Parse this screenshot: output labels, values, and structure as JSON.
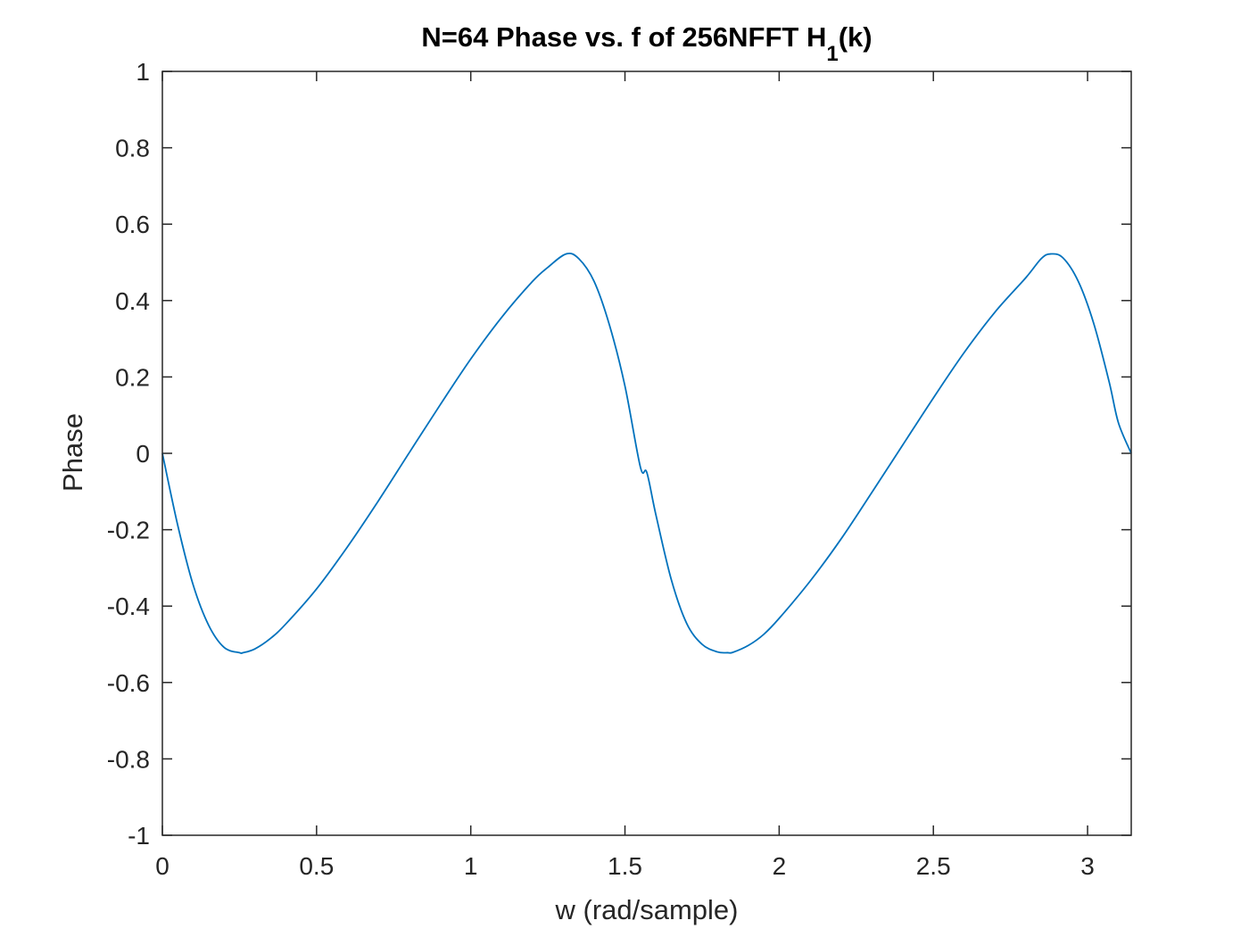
{
  "chart_data": {
    "type": "line",
    "title": {
      "text": "N=64 Phase vs. f of 256NFFT H",
      "subscript": "1",
      "suffix": "(k)"
    },
    "xlabel": "w (rad/sample)",
    "ylabel": "Phase",
    "xlim": [
      0,
      3.1416
    ],
    "ylim": [
      -1,
      1
    ],
    "xticks": [
      0,
      0.5,
      1,
      1.5,
      2,
      2.5,
      3
    ],
    "xtick_labels": [
      "0",
      "0.5",
      "1",
      "1.5",
      "2",
      "2.5",
      "3"
    ],
    "yticks": [
      -1,
      -0.8,
      -0.6,
      -0.4,
      -0.2,
      0,
      0.2,
      0.4,
      0.6,
      0.8,
      1
    ],
    "ytick_labels": [
      "-1",
      "-0.8",
      "-0.6",
      "-0.4",
      "-0.2",
      "0",
      "0.2",
      "0.4",
      "0.6",
      "0.8",
      "1"
    ],
    "grid": false,
    "box": true,
    "series": [
      {
        "color": "#0072BD",
        "x": [
          0,
          0.05,
          0.1,
          0.15,
          0.2,
          0.25,
          0.262,
          0.3,
          0.35,
          0.4,
          0.5,
          0.6,
          0.7,
          0.8,
          0.9,
          1.0,
          1.1,
          1.2,
          1.25,
          1.309,
          1.35,
          1.4,
          1.45,
          1.5,
          1.55,
          1.5708,
          1.6,
          1.65,
          1.7,
          1.75,
          1.8,
          1.833,
          1.85,
          1.9,
          1.95,
          2.0,
          2.1,
          2.2,
          2.3,
          2.4,
          2.5,
          2.6,
          2.7,
          2.8,
          2.85,
          2.88,
          2.92,
          2.97,
          3.02,
          3.07,
          3.1,
          3.1416
        ],
        "y": [
          0,
          -0.189,
          -0.345,
          -0.45,
          -0.508,
          -0.522,
          -0.522,
          -0.512,
          -0.485,
          -0.447,
          -0.355,
          -0.245,
          -0.125,
          0.001,
          0.126,
          0.247,
          0.356,
          0.45,
          0.487,
          0.522,
          0.51,
          0.45,
          0.335,
          0.176,
          -0.036,
          -0.05,
          -0.16,
          -0.33,
          -0.445,
          -0.5,
          -0.52,
          -0.522,
          -0.521,
          -0.503,
          -0.474,
          -0.432,
          -0.335,
          -0.225,
          -0.103,
          0.021,
          0.145,
          0.264,
          0.37,
          0.46,
          0.51,
          0.522,
          0.512,
          0.45,
          0.34,
          0.187,
          0.08,
          0
        ]
      }
    ]
  }
}
